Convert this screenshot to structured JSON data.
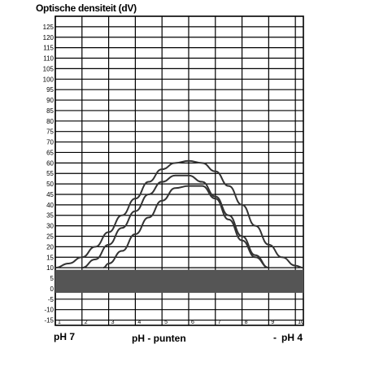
{
  "chart_data": {
    "type": "line",
    "title": "Optische densiteit (dV)",
    "xlabel": "pH - punten",
    "x_end_labels": {
      "left": "pH 7",
      "right": "pH 4",
      "right_marker": "-"
    },
    "x_ticks": [
      "1",
      "2",
      "3",
      "4",
      "5",
      "6",
      "7",
      "8",
      "9",
      "10"
    ],
    "y_ticks": [
      "-15",
      "-10",
      "-5",
      "0",
      "5",
      "10",
      "15",
      "20",
      "25",
      "30",
      "35",
      "40",
      "45",
      "50",
      "55",
      "60",
      "65",
      "70",
      "75",
      "80",
      "85",
      "90",
      "95",
      "100",
      "105",
      "110",
      "115",
      "120",
      "125"
    ],
    "ylim": [
      -17.5,
      130
    ],
    "xlim": [
      1,
      10.3
    ],
    "grid": true,
    "baseline_band": {
      "from": -2,
      "to": 9,
      "color": "#555555"
    },
    "series": [
      {
        "x": [
          1,
          1.5,
          2,
          2.5,
          3,
          3.5,
          4,
          4.5,
          5,
          5.5,
          6,
          6.5,
          7,
          7.5,
          8,
          8.5,
          9,
          9.5,
          10,
          10.3
        ],
        "values": [
          10,
          12,
          15,
          20,
          27,
          35,
          43,
          51,
          57,
          60,
          61,
          60,
          56,
          49,
          40,
          30,
          21,
          15,
          11,
          10
        ]
      },
      {
        "x": [
          2,
          2.5,
          3,
          3.5,
          4,
          4.5,
          5,
          5.5,
          6,
          6.5,
          7,
          7.5,
          8,
          8.5,
          9
        ],
        "values": [
          10,
          14,
          21,
          29,
          37,
          45,
          51,
          54,
          54,
          51,
          44,
          35,
          25,
          16,
          10
        ]
      },
      {
        "x": [
          2.8,
          3,
          3.5,
          4,
          4.5,
          5,
          5.5,
          6,
          6.5,
          7,
          7.5,
          8,
          8.5,
          9
        ],
        "values": [
          10,
          12,
          18,
          26,
          34,
          42,
          48,
          49,
          49,
          43,
          33,
          23,
          15,
          10
        ]
      }
    ],
    "colors": {
      "line": "#333333",
      "grid": "#000000"
    }
  }
}
